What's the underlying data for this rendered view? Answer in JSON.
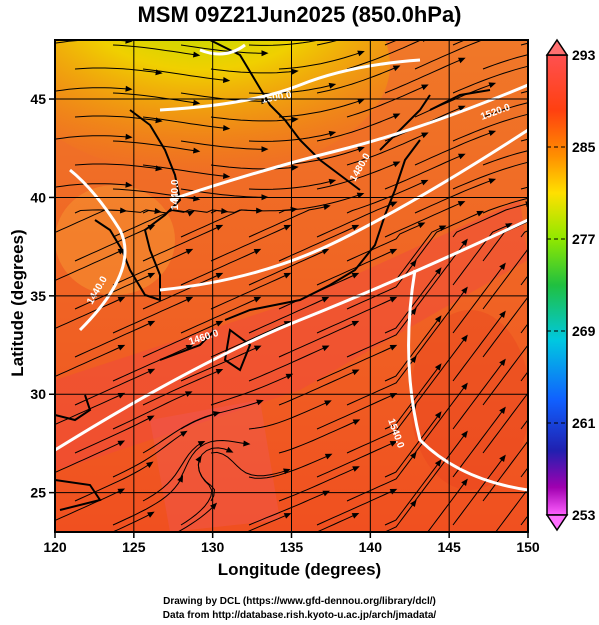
{
  "title": "MSM 09Z21Jun2025 (850.0hPa)",
  "x_axis": {
    "label": "Longitude (degrees)",
    "ticks": [
      "120",
      "125",
      "130",
      "135",
      "140",
      "145",
      "150"
    ]
  },
  "y_axis": {
    "label": "Latitude  (degrees)",
    "ticks": [
      "25",
      "30",
      "35",
      "40",
      "45"
    ]
  },
  "colorbar": {
    "labels": [
      "293",
      "285",
      "277",
      "269",
      "261",
      "253"
    ],
    "colors": [
      "#ff66ff",
      "#c000c0",
      "#2020b0",
      "#1060ff",
      "#00c8ff",
      "#00d080",
      "#40e040",
      "#b0f000",
      "#ffe000",
      "#ffa000",
      "#ff6000",
      "#ff3000",
      "#ff5050"
    ]
  },
  "contour_labels": [
    "1440.0",
    "1460.0",
    "1480.0",
    "1500.0",
    "1520.0",
    "1540.0"
  ],
  "credits": {
    "line1": "Drawing by DCL (https://www.gfd-dennou.org/library/dcl/)",
    "line2": "Data from http://database.rish.kyoto-u.ac.jp/arch/jmadata/"
  }
}
